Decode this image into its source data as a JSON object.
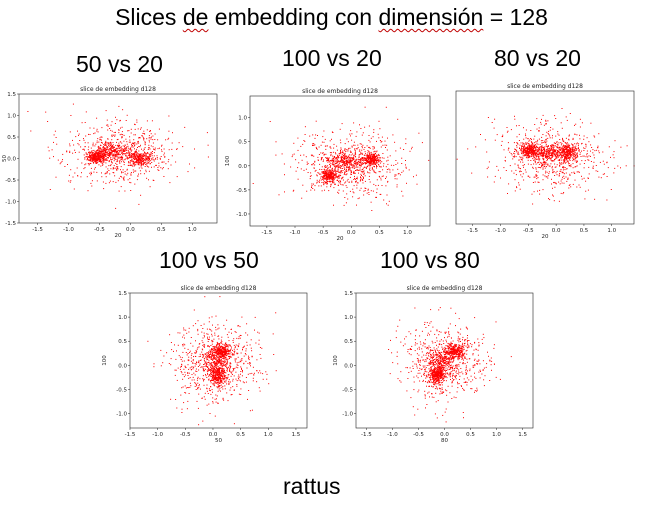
{
  "slide": {
    "title_prefix": "Slices ",
    "title_word_de": "de",
    "title_middle": " embedding con ",
    "title_word_dim": "dimensión",
    "title_suffix": " = 128",
    "footer": "rattus"
  },
  "colors": {
    "points": "#ff0000",
    "spellcheck_underline": "#c00000"
  },
  "chart_data": [
    {
      "type": "scatter",
      "caption": "50 vs 20",
      "title": "slice de embedding d128",
      "xlabel": "20",
      "ylabel": "50",
      "xlim": [
        -1.8,
        1.4
      ],
      "ylim": [
        -1.5,
        1.5
      ],
      "xticks": [
        -1.5,
        -1.0,
        -0.5,
        0.0,
        0.5,
        1.0
      ],
      "yticks": [
        -1.5,
        -1.0,
        -0.5,
        0.0,
        0.5,
        1.0,
        1.5
      ],
      "point_count": 1500,
      "clusters": [
        {
          "center": [
            -0.3,
            0.2
          ],
          "spread": [
            0.15,
            0.1
          ]
        },
        {
          "center": [
            0.15,
            0.0
          ],
          "spread": [
            0.1,
            0.08
          ]
        },
        {
          "center": [
            -0.55,
            0.05
          ],
          "spread": [
            0.08,
            0.07
          ]
        }
      ],
      "overall_spread": [
        0.48,
        0.38
      ]
    },
    {
      "type": "scatter",
      "caption": "100 vs 20",
      "title": "slice de embedding d128",
      "xlabel": "20",
      "ylabel": "100",
      "xlim": [
        -1.8,
        1.4
      ],
      "ylim": [
        -1.25,
        1.45
      ],
      "xticks": [
        -1.5,
        -1.0,
        -0.5,
        0.0,
        0.5,
        1.0
      ],
      "yticks": [
        -1.0,
        -0.5,
        0.0,
        0.5,
        1.0
      ],
      "point_count": 1500,
      "clusters": [
        {
          "center": [
            -0.1,
            0.1
          ],
          "spread": [
            0.15,
            0.1
          ]
        },
        {
          "center": [
            -0.4,
            -0.2
          ],
          "spread": [
            0.08,
            0.07
          ]
        },
        {
          "center": [
            0.35,
            0.15
          ],
          "spread": [
            0.08,
            0.07
          ]
        }
      ],
      "overall_spread": [
        0.48,
        0.36
      ]
    },
    {
      "type": "scatter",
      "caption": "80 vs 20",
      "title": "slice de embedding d128",
      "xlabel": "20",
      "ylabel": "",
      "xlim": [
        -1.8,
        1.4
      ],
      "ylim": [
        -1.2,
        1.4
      ],
      "xticks": [
        -1.5,
        -1.0,
        -0.5,
        0.0,
        0.5,
        1.0
      ],
      "yticks": [],
      "point_count": 1500,
      "clusters": [
        {
          "center": [
            -0.2,
            0.2
          ],
          "spread": [
            0.14,
            0.09
          ]
        },
        {
          "center": [
            -0.5,
            0.25
          ],
          "spread": [
            0.09,
            0.07
          ]
        },
        {
          "center": [
            0.2,
            0.2
          ],
          "spread": [
            0.1,
            0.08
          ]
        }
      ],
      "overall_spread": [
        0.48,
        0.34
      ]
    },
    {
      "type": "scatter",
      "caption": "100 vs 50",
      "title": "slice de embedding d128",
      "xlabel": "50",
      "ylabel": "100",
      "xlim": [
        -1.5,
        1.7
      ],
      "ylim": [
        -1.3,
        1.5
      ],
      "xticks": [
        -1.5,
        -1.0,
        -0.5,
        0.0,
        0.5,
        1.0,
        1.5
      ],
      "yticks": [
        -1.0,
        -0.5,
        0.0,
        0.5,
        1.0,
        1.5
      ],
      "point_count": 1500,
      "clusters": [
        {
          "center": [
            0.05,
            0.1
          ],
          "spread": [
            0.1,
            0.15
          ]
        },
        {
          "center": [
            0.1,
            -0.2
          ],
          "spread": [
            0.08,
            0.1
          ]
        },
        {
          "center": [
            0.15,
            0.3
          ],
          "spread": [
            0.08,
            0.08
          ]
        }
      ],
      "overall_spread": [
        0.4,
        0.45
      ]
    },
    {
      "type": "scatter",
      "caption": "100 vs 80",
      "title": "slice de embedding d128",
      "xlabel": "80",
      "ylabel": "100",
      "xlim": [
        -1.7,
        1.7
      ],
      "ylim": [
        -1.3,
        1.5
      ],
      "xticks": [
        -1.5,
        -1.0,
        -0.5,
        0.0,
        0.5,
        1.0,
        1.5
      ],
      "yticks": [
        -1.0,
        -0.5,
        0.0,
        0.5,
        1.0,
        1.5
      ],
      "point_count": 1500,
      "clusters": [
        {
          "center": [
            -0.05,
            0.05
          ],
          "spread": [
            0.12,
            0.14
          ]
        },
        {
          "center": [
            0.2,
            0.3
          ],
          "spread": [
            0.1,
            0.07
          ]
        },
        {
          "center": [
            -0.15,
            -0.2
          ],
          "spread": [
            0.08,
            0.08
          ]
        }
      ],
      "overall_spread": [
        0.42,
        0.42
      ]
    }
  ]
}
